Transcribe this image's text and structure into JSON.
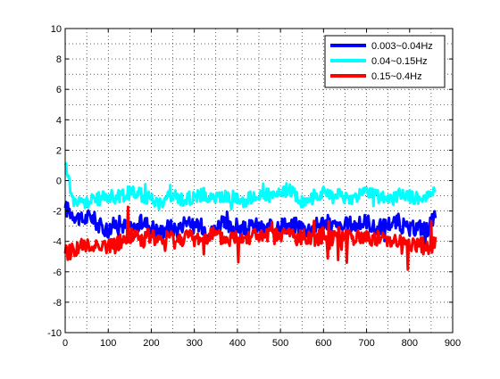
{
  "chart_data": {
    "type": "line",
    "title": "",
    "xlabel": "",
    "ylabel": "",
    "xlim": [
      0,
      900
    ],
    "ylim": [
      -10,
      10
    ],
    "xticks": [
      "0",
      "100",
      "200",
      "300",
      "400",
      "500",
      "600",
      "700",
      "800",
      "900"
    ],
    "yticks": [
      "10",
      "8",
      "6",
      "4",
      "2",
      "0",
      "-2",
      "-4",
      "-6",
      "-8",
      "-10"
    ],
    "grid": "on (dotted, major and minor)",
    "legend_position": "top-right",
    "series": [
      {
        "name": "0.003~0.04Hz",
        "color": "#0000ff",
        "x": [
          0,
          20,
          40,
          60,
          80,
          100,
          120,
          140,
          160,
          180,
          200,
          220,
          240,
          260,
          280,
          300,
          320,
          340,
          360,
          380,
          400,
          420,
          440,
          460,
          480,
          500,
          520,
          540,
          560,
          580,
          600,
          620,
          640,
          660,
          680,
          700,
          720,
          740,
          760,
          780,
          800,
          820,
          840,
          860
        ],
        "y": [
          -1.8,
          -2.2,
          -2.6,
          -2.3,
          -3.0,
          -3.2,
          -2.8,
          -3.0,
          -3.2,
          -2.7,
          -3.0,
          -3.4,
          -3.0,
          -3.2,
          -2.6,
          -3.1,
          -3.0,
          -3.4,
          -2.8,
          -3.1,
          -3.0,
          -3.3,
          -2.9,
          -3.2,
          -3.1,
          -2.8,
          -3.0,
          -2.9,
          -3.2,
          -3.0,
          -2.7,
          -2.9,
          -3.2,
          -2.8,
          -3.0,
          -2.6,
          -3.2,
          -3.0,
          -2.7,
          -2.9,
          -3.3,
          -3.0,
          -3.2,
          -2.4
        ]
      },
      {
        "name": "0.04~0.15Hz",
        "color": "#00ffff",
        "x": [
          0,
          20,
          40,
          60,
          80,
          100,
          120,
          140,
          160,
          180,
          200,
          220,
          240,
          260,
          280,
          300,
          320,
          340,
          360,
          380,
          400,
          420,
          440,
          460,
          480,
          500,
          520,
          540,
          560,
          580,
          600,
          620,
          640,
          660,
          680,
          700,
          720,
          740,
          760,
          780,
          800,
          820,
          840,
          860
        ],
        "y": [
          1.0,
          -1.4,
          -1.5,
          -1.3,
          -1.2,
          -1.0,
          -1.1,
          -0.9,
          -0.7,
          -1.0,
          -1.2,
          -1.5,
          -1.0,
          -1.1,
          -1.3,
          -1.0,
          -0.9,
          -1.2,
          -1.1,
          -1.0,
          -1.2,
          -1.3,
          -1.0,
          -0.8,
          -1.1,
          -0.9,
          -0.5,
          -1.2,
          -1.4,
          -1.0,
          -0.8,
          -1.1,
          -0.9,
          -1.3,
          -1.0,
          -0.7,
          -1.0,
          -1.1,
          -1.2,
          -0.9,
          -1.0,
          -1.2,
          -1.1,
          -0.4
        ]
      },
      {
        "name": "0.15~0.4Hz",
        "color": "#ff0000",
        "x": [
          0,
          20,
          40,
          60,
          80,
          100,
          120,
          140,
          160,
          180,
          200,
          220,
          240,
          260,
          280,
          300,
          320,
          340,
          360,
          380,
          400,
          420,
          440,
          460,
          480,
          500,
          520,
          540,
          560,
          580,
          600,
          620,
          640,
          660,
          680,
          700,
          720,
          740,
          760,
          780,
          800,
          820,
          840,
          860
        ],
        "y": [
          -4.8,
          -4.5,
          -4.3,
          -4.4,
          -4.1,
          -4.4,
          -4.2,
          -3.8,
          -3.5,
          -3.9,
          -3.6,
          -4.1,
          -3.7,
          -4.0,
          -3.6,
          -3.9,
          -3.7,
          -3.5,
          -3.8,
          -3.9,
          -3.6,
          -3.7,
          -3.5,
          -3.8,
          -3.6,
          -3.7,
          -3.4,
          -3.9,
          -3.6,
          -3.8,
          -3.6,
          -3.7,
          -3.5,
          -3.6,
          -3.8,
          -3.7,
          -3.8,
          -3.9,
          -3.8,
          -4.1,
          -4.2,
          -4.3,
          -4.3,
          -4.2
        ]
      }
    ]
  }
}
